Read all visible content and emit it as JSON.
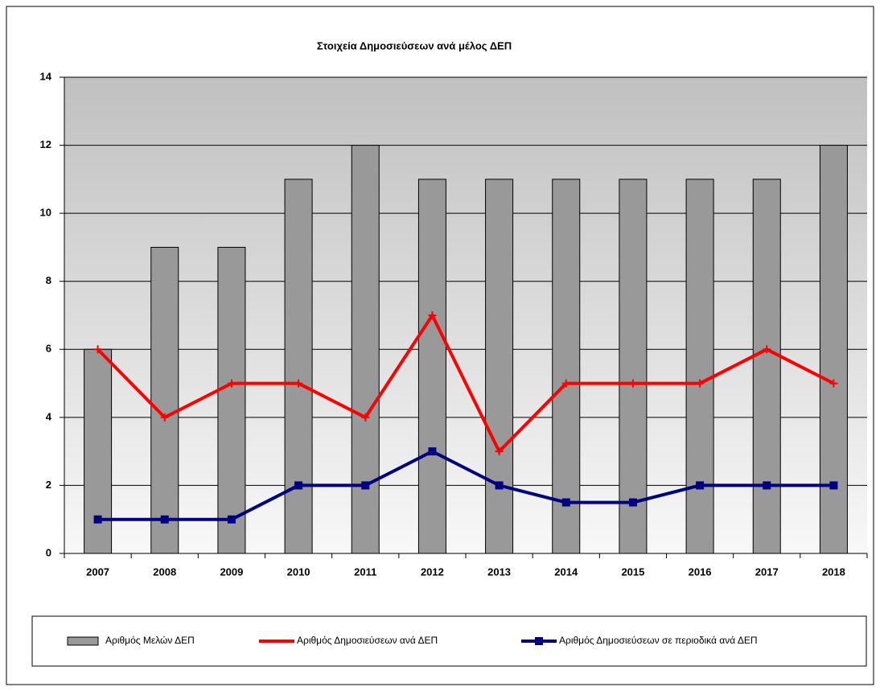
{
  "chart_data": {
    "type": "bar",
    "title": "Στοιχεία Δημοσιεύσεων ανά μέλος ΔΕΠ",
    "categories": [
      "2007",
      "2008",
      "2009",
      "2010",
      "2011",
      "2012",
      "2013",
      "2014",
      "2015",
      "2016",
      "2017",
      "2018"
    ],
    "series": [
      {
        "name": "Αριθμός Μελών ΔΕΠ",
        "type": "bar",
        "color": "#999999",
        "values": [
          6,
          9,
          9,
          11,
          12,
          11,
          11,
          11,
          11,
          11,
          11,
          12
        ]
      },
      {
        "name": "Αριθμός Δημοσιεύσεων ανά  ΔΕΠ",
        "type": "line",
        "color": "#ff0000",
        "values": [
          6,
          4,
          5,
          5,
          4,
          7,
          3,
          5,
          5,
          5,
          6,
          5
        ]
      },
      {
        "name": "Αριθμός Δημοσιεύσεων σε περιοδικά ανά  ΔΕΠ",
        "type": "line",
        "color": "#000080",
        "values": [
          1,
          1,
          1,
          2,
          2,
          3,
          2,
          1.5,
          1.5,
          2,
          2,
          2
        ]
      }
    ],
    "ylim": [
      0,
      14
    ],
    "yticks": [
      0,
      2,
      4,
      6,
      8,
      10,
      12,
      14
    ],
    "grid": true,
    "legend": "bottom"
  }
}
